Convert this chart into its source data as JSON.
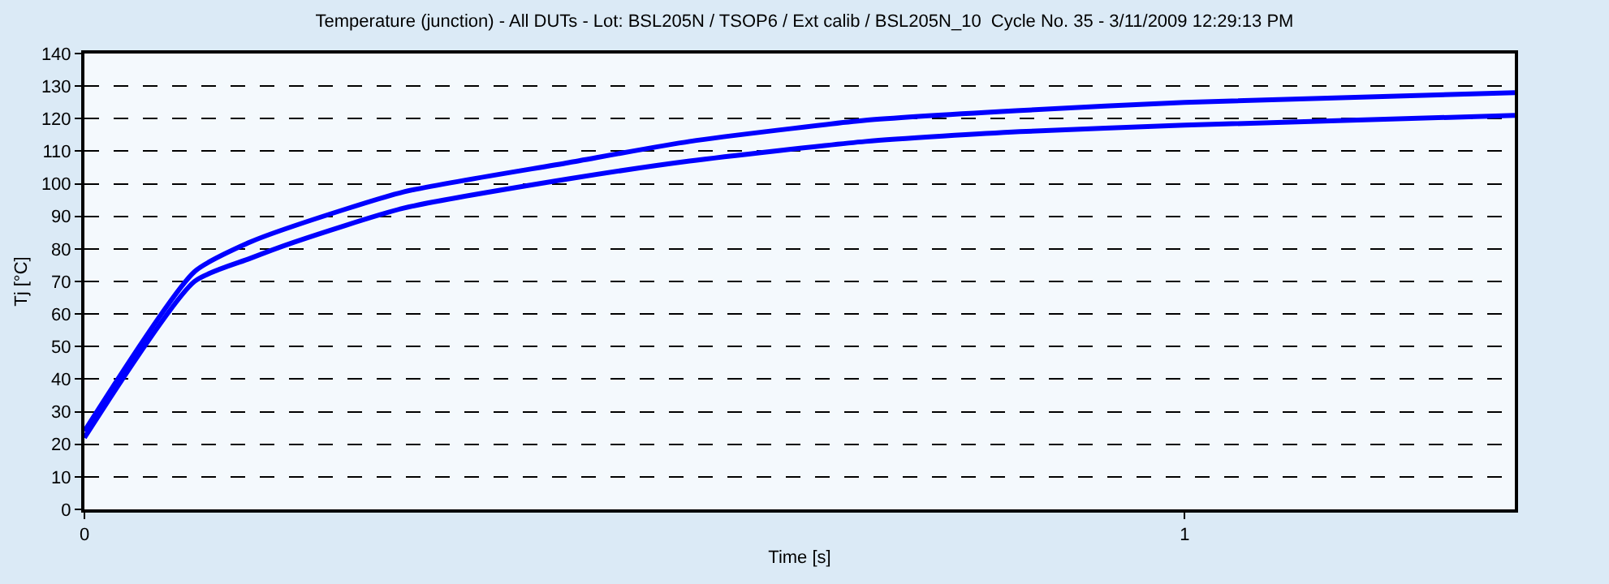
{
  "chart_data": {
    "type": "line",
    "title": "Temperature (junction) - All DUTs - Lot: BSL205N / TSOP6 / Ext calib / BSL205N_10  Cycle No. 35 - 3/11/2009 12:29:13 PM",
    "xlabel": "Time [s]",
    "ylabel": "Tj [°C]",
    "x": [
      0,
      0.1,
      0.15,
      0.19,
      0.29,
      0.44,
      0.55,
      0.71,
      0.85,
      1.0,
      1.3
    ],
    "series": [
      {
        "color": "#0000ff",
        "values": [
          22,
          70,
          77,
          82,
          92.5,
          101.5,
          107,
          113,
          116,
          118,
          121
        ]
      },
      {
        "color": "#0000ff",
        "values": [
          24,
          73,
          82,
          87,
          97.5,
          106.5,
          113,
          119.5,
          122.5,
          125,
          128
        ]
      }
    ],
    "xlim": [
      0,
      1.3
    ],
    "xticks": [
      0,
      1
    ],
    "ylim": [
      0,
      140
    ],
    "yticks": [
      0,
      10,
      20,
      30,
      40,
      50,
      60,
      70,
      80,
      90,
      100,
      110,
      120,
      130,
      140
    ],
    "grid": "y",
    "marker": "none",
    "line_style": "solid"
  }
}
